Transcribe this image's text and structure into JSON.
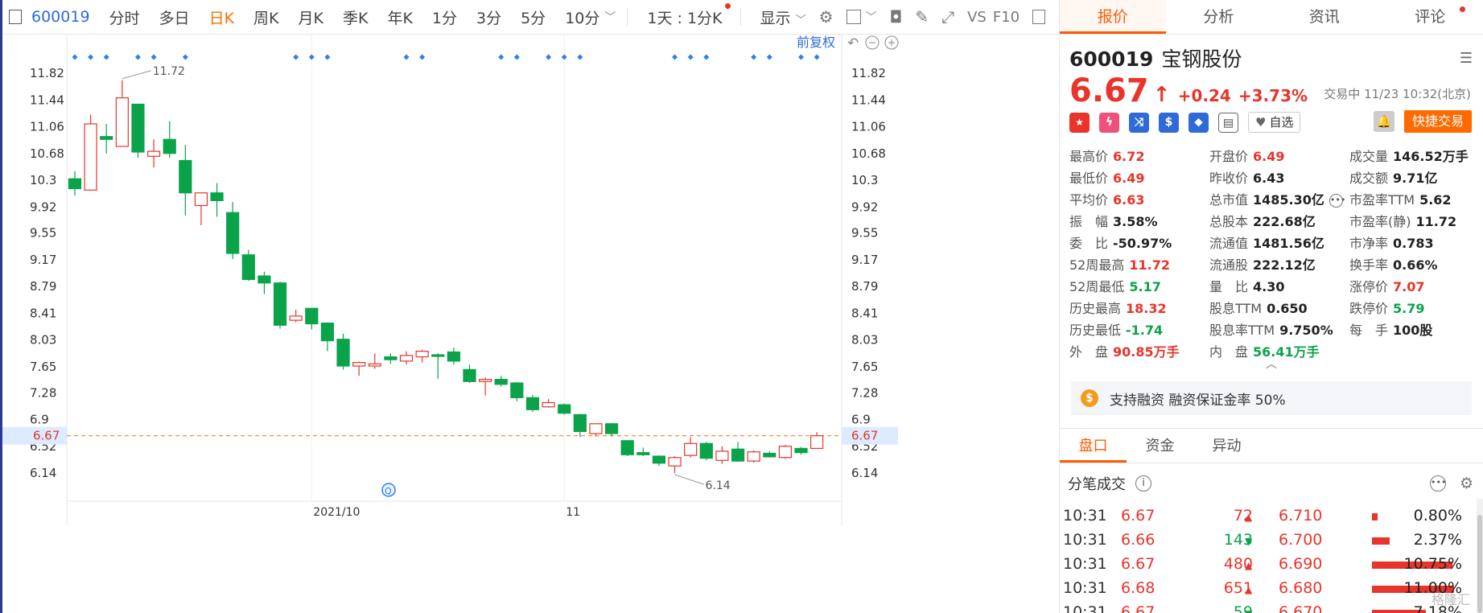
{
  "toolbar": {
    "code": "600019",
    "items": [
      "分时",
      "多日",
      "日K",
      "周K",
      "月K",
      "季K",
      "年K",
      "1分",
      "3分",
      "5分",
      "10分"
    ],
    "active_index": 2,
    "period_select": "1天 : 1分K",
    "display_label": "显示",
    "vs_label": "VS",
    "f10_label": "F10"
  },
  "chart": {
    "restore_label": "前复权",
    "last_price_label": "6.67",
    "high_label": "11.72",
    "low_label": "6.14",
    "event_icon": "Q"
  },
  "chart_data": {
    "type": "candlestick",
    "yticks": [
      11.82,
      11.44,
      11.06,
      10.68,
      10.3,
      9.92,
      9.55,
      9.17,
      8.79,
      8.41,
      8.03,
      7.65,
      7.28,
      6.9,
      6.52,
      6.14
    ],
    "xlabels": [
      {
        "label": "2021/10",
        "index": 15
      },
      {
        "label": "11",
        "index": 31
      }
    ],
    "last_price": 6.67,
    "high_mark": 11.72,
    "low_mark": 6.14,
    "marker_indices": [
      0,
      1,
      2,
      4,
      5,
      7,
      14,
      15,
      16,
      21,
      22,
      27,
      28,
      30,
      31,
      32,
      38,
      39,
      40,
      43,
      44,
      46,
      47
    ],
    "candles": [
      {
        "o": 10.32,
        "c": 10.18,
        "h": 10.43,
        "l": 10.08
      },
      {
        "o": 10.16,
        "c": 11.1,
        "h": 11.23,
        "l": 10.16
      },
      {
        "o": 10.92,
        "c": 10.88,
        "h": 11.1,
        "l": 10.68
      },
      {
        "o": 10.78,
        "c": 11.47,
        "h": 11.72,
        "l": 10.78
      },
      {
        "o": 11.38,
        "c": 10.7,
        "h": 11.38,
        "l": 10.62
      },
      {
        "o": 10.64,
        "c": 10.71,
        "h": 10.88,
        "l": 10.48
      },
      {
        "o": 10.88,
        "c": 10.68,
        "h": 11.14,
        "l": 10.62
      },
      {
        "o": 10.58,
        "c": 10.12,
        "h": 10.8,
        "l": 9.8
      },
      {
        "o": 9.94,
        "c": 10.12,
        "h": 10.12,
        "l": 9.66
      },
      {
        "o": 10.12,
        "c": 10.01,
        "h": 10.26,
        "l": 9.78
      },
      {
        "o": 9.84,
        "c": 9.26,
        "h": 9.99,
        "l": 9.18
      },
      {
        "o": 9.24,
        "c": 8.89,
        "h": 9.31,
        "l": 8.87
      },
      {
        "o": 8.94,
        "c": 8.84,
        "h": 9.0,
        "l": 8.68
      },
      {
        "o": 8.84,
        "c": 8.24,
        "h": 8.86,
        "l": 8.19
      },
      {
        "o": 8.31,
        "c": 8.37,
        "h": 8.46,
        "l": 8.28
      },
      {
        "o": 8.48,
        "c": 8.26,
        "h": 8.48,
        "l": 8.18
      },
      {
        "o": 8.27,
        "c": 8.02,
        "h": 8.28,
        "l": 7.87
      },
      {
        "o": 8.04,
        "c": 7.66,
        "h": 8.12,
        "l": 7.61
      },
      {
        "o": 7.66,
        "c": 7.71,
        "h": 7.72,
        "l": 7.52
      },
      {
        "o": 7.66,
        "c": 7.69,
        "h": 7.84,
        "l": 7.62
      },
      {
        "o": 7.79,
        "c": 7.75,
        "h": 7.84,
        "l": 7.69
      },
      {
        "o": 7.73,
        "c": 7.81,
        "h": 7.87,
        "l": 7.68
      },
      {
        "o": 7.79,
        "c": 7.87,
        "h": 7.89,
        "l": 7.71
      },
      {
        "o": 7.82,
        "c": 7.81,
        "h": 7.84,
        "l": 7.48
      },
      {
        "o": 7.86,
        "c": 7.73,
        "h": 7.92,
        "l": 7.68
      },
      {
        "o": 7.61,
        "c": 7.44,
        "h": 7.68,
        "l": 7.42
      },
      {
        "o": 7.44,
        "c": 7.47,
        "h": 7.5,
        "l": 7.24
      },
      {
        "o": 7.47,
        "c": 7.4,
        "h": 7.52,
        "l": 7.37
      },
      {
        "o": 7.42,
        "c": 7.21,
        "h": 7.43,
        "l": 7.16
      },
      {
        "o": 7.21,
        "c": 7.04,
        "h": 7.25,
        "l": 7.01
      },
      {
        "o": 7.08,
        "c": 7.14,
        "h": 7.19,
        "l": 7.07
      },
      {
        "o": 7.11,
        "c": 6.99,
        "h": 7.13,
        "l": 6.97
      },
      {
        "o": 6.97,
        "c": 6.73,
        "h": 6.98,
        "l": 6.65
      },
      {
        "o": 6.7,
        "c": 6.84,
        "h": 6.84,
        "l": 6.66
      },
      {
        "o": 6.84,
        "c": 6.7,
        "h": 6.85,
        "l": 6.66
      },
      {
        "o": 6.6,
        "c": 6.4,
        "h": 6.6,
        "l": 6.38
      },
      {
        "o": 6.43,
        "c": 6.4,
        "h": 6.5,
        "l": 6.38
      },
      {
        "o": 6.38,
        "c": 6.28,
        "h": 6.39,
        "l": 6.24
      },
      {
        "o": 6.24,
        "c": 6.36,
        "h": 6.38,
        "l": 6.14
      },
      {
        "o": 6.39,
        "c": 6.56,
        "h": 6.65,
        "l": 6.36
      },
      {
        "o": 6.56,
        "c": 6.35,
        "h": 6.58,
        "l": 6.32
      },
      {
        "o": 6.32,
        "c": 6.45,
        "h": 6.52,
        "l": 6.27
      },
      {
        "o": 6.48,
        "c": 6.31,
        "h": 6.58,
        "l": 6.3
      },
      {
        "o": 6.31,
        "c": 6.44,
        "h": 6.46,
        "l": 6.29
      },
      {
        "o": 6.42,
        "c": 6.37,
        "h": 6.45,
        "l": 6.36
      },
      {
        "o": 6.36,
        "c": 6.52,
        "h": 6.54,
        "l": 6.34
      },
      {
        "o": 6.49,
        "c": 6.43,
        "h": 6.51,
        "l": 6.4
      },
      {
        "o": 6.49,
        "c": 6.67,
        "h": 6.72,
        "l": 6.49
      }
    ]
  },
  "tabs": [
    "报价",
    "分析",
    "资讯",
    "评论"
  ],
  "stock": {
    "code": "600019",
    "name": "宝钢股份",
    "price": "6.67",
    "change": "+0.24",
    "change_pct": "+3.73%",
    "status": "交易中 11/23 10:32(北京)"
  },
  "actions": {
    "watch_label": "自选",
    "quick_trade_label": "快捷交易"
  },
  "stats": [
    [
      {
        "l": "最高价",
        "v": "6.72",
        "c": "red"
      },
      {
        "l": "开盘价",
        "v": "6.49",
        "c": "red"
      },
      {
        "l": "成交量",
        "v": "146.52万手",
        "c": ""
      }
    ],
    [
      {
        "l": "最低价",
        "v": "6.49",
        "c": "red"
      },
      {
        "l": "昨收价",
        "v": "6.43",
        "c": ""
      },
      {
        "l": "成交额",
        "v": "9.71亿",
        "c": ""
      }
    ],
    [
      {
        "l": "平均价",
        "v": "6.63",
        "c": "red"
      },
      {
        "l": "总市值",
        "v": "1485.30亿",
        "c": ""
      },
      {
        "l": "市盈率TTM",
        "v": "5.62",
        "c": ""
      }
    ],
    [
      {
        "l": "振　幅",
        "v": "3.58%",
        "c": ""
      },
      {
        "l": "总股本",
        "v": "222.68亿",
        "c": ""
      },
      {
        "l": "市盈率(静)",
        "v": "11.72",
        "c": ""
      }
    ],
    [
      {
        "l": "委　比",
        "v": "-50.97%",
        "c": ""
      },
      {
        "l": "流通值",
        "v": "1481.56亿",
        "c": ""
      },
      {
        "l": "市净率",
        "v": "0.783",
        "c": ""
      }
    ],
    [
      {
        "l": "52周最高",
        "v": "11.72",
        "c": "red"
      },
      {
        "l": "流通股",
        "v": "222.12亿",
        "c": ""
      },
      {
        "l": "换手率",
        "v": "0.66%",
        "c": ""
      }
    ],
    [
      {
        "l": "52周最低",
        "v": "5.17",
        "c": "green"
      },
      {
        "l": "量　比",
        "v": "4.30",
        "c": ""
      },
      {
        "l": "涨停价",
        "v": "7.07",
        "c": "red"
      }
    ],
    [
      {
        "l": "历史最高",
        "v": "18.32",
        "c": "red"
      },
      {
        "l": "股息TTM",
        "v": "0.650",
        "c": ""
      },
      {
        "l": "跌停价",
        "v": "5.79",
        "c": "green"
      }
    ],
    [
      {
        "l": "历史最低",
        "v": "-1.74",
        "c": "green"
      },
      {
        "l": "股息率TTM",
        "v": "9.750%",
        "c": ""
      },
      {
        "l": "每　手",
        "v": "100股",
        "c": ""
      }
    ],
    [
      {
        "l": "外　盘",
        "v": "90.85万手",
        "c": "red"
      },
      {
        "l": "内　盘",
        "v": "56.41万手",
        "c": "green"
      },
      {
        "l": "",
        "v": "",
        "c": ""
      }
    ]
  ],
  "margin_banner": "支持融资 融资保证金率 50%",
  "sub_tabs": [
    "盘口",
    "资金",
    "异动"
  ],
  "tick_title": "分笔成交",
  "ticks": [
    {
      "time": "10:31",
      "price": "6.67",
      "vol": "72",
      "dir": "up",
      "lvl": "6.710",
      "pct": "0.80%",
      "bar": 0.0074
    },
    {
      "time": "10:31",
      "price": "6.66",
      "vol": "143",
      "dir": "down",
      "lvl": "6.700",
      "pct": "2.37%",
      "bar": 0.022
    },
    {
      "time": "10:31",
      "price": "6.67",
      "vol": "480",
      "dir": "up",
      "lvl": "6.690",
      "pct": "10.75%",
      "bar": 0.0998
    },
    {
      "time": "10:31",
      "price": "6.68",
      "vol": "651",
      "dir": "up",
      "lvl": "6.680",
      "pct": "11.00%",
      "bar": 0.1021
    },
    {
      "time": "10:31",
      "price": "6.67",
      "vol": "59",
      "dir": "down",
      "lvl": "6.670",
      "pct": "7.18%",
      "bar": 0.0667
    }
  ],
  "watermark": "格隆汇"
}
